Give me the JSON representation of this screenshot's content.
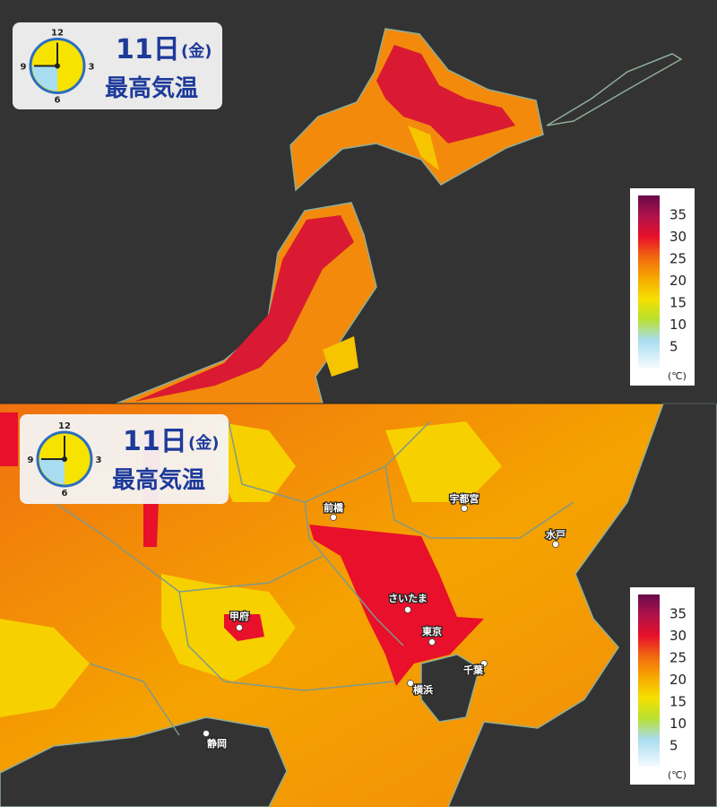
{
  "panels": [
    {
      "header": {
        "day": "11日",
        "weekday": "(金)",
        "title": "最高気温",
        "clock": [
          "12",
          "3",
          "6",
          "9"
        ]
      },
      "legend": {
        "labels": [
          "35",
          "30",
          "25",
          "20",
          "15",
          "10",
          "5"
        ],
        "unit": "(℃)"
      }
    },
    {
      "header": {
        "day": "11日",
        "weekday": "(金)",
        "title": "最高気温",
        "clock": [
          "12",
          "3",
          "6",
          "9"
        ]
      },
      "legend": {
        "labels": [
          "35",
          "30",
          "25",
          "20",
          "15",
          "10",
          "5"
        ],
        "unit": "(℃)"
      },
      "cities": [
        "前橋",
        "宇都宮",
        "水戸",
        "さいたま",
        "甲府",
        "東京",
        "千葉",
        "横浜",
        "静岡"
      ]
    }
  ]
}
